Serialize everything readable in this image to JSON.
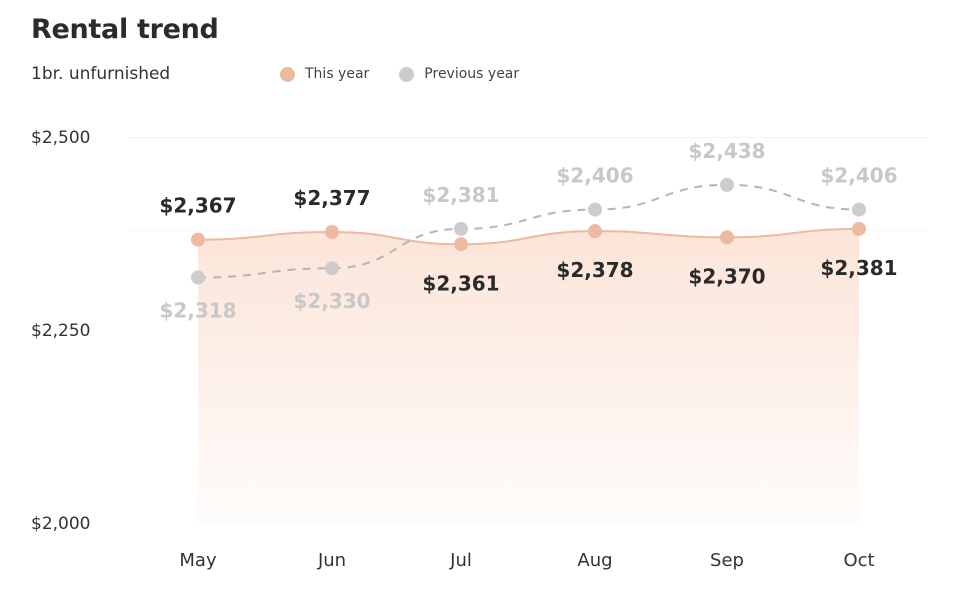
{
  "colors": {
    "this_year": "#eeb9a1",
    "this_year_fill": "#fbe3d6",
    "previous_year": "#cccccc",
    "value_dark": "#2a2a2a",
    "value_light": "#c8c8c8",
    "axis_text": "#333333"
  },
  "chart_data": {
    "type": "line",
    "title": "Rental trend",
    "subtitle": "1br. unfurnished",
    "categories": [
      "May",
      "Jun",
      "Jul",
      "Aug",
      "Sep",
      "Oct"
    ],
    "series": [
      {
        "name": "This year",
        "values": [
          2367,
          2377,
          2361,
          2378,
          2370,
          2381
        ],
        "labels": [
          "$2,367",
          "$2,377",
          "$2,361",
          "$2,378",
          "$2,370",
          "$2,381"
        ],
        "style": "solid, filled area"
      },
      {
        "name": "Previous year",
        "values": [
          2318,
          2330,
          2381,
          2406,
          2438,
          2406
        ],
        "labels": [
          "$2,318",
          "$2,330",
          "$2,381",
          "$2,406",
          "$2,438",
          "$2,406"
        ],
        "style": "dashed"
      }
    ],
    "yticks": [
      2000,
      2250,
      2500
    ],
    "ytick_labels": [
      "$2,000",
      "$2,250",
      "$2,500"
    ],
    "ylim": [
      2000,
      2500
    ],
    "legend_position": "top"
  }
}
